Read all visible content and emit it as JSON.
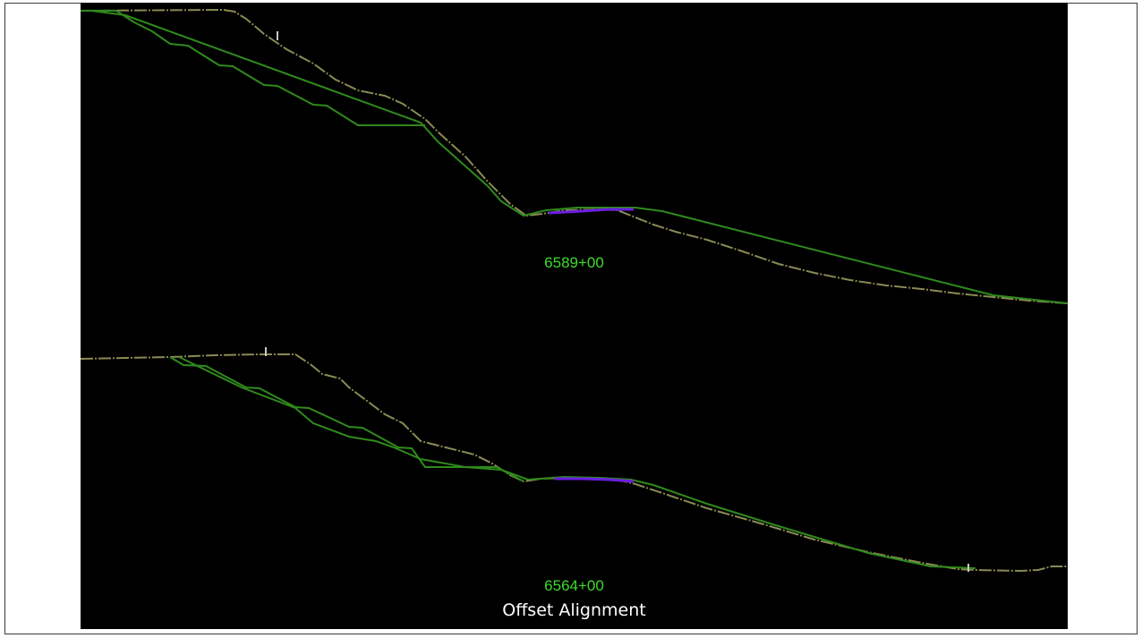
{
  "sections": [
    {
      "station": "6589+00"
    },
    {
      "station": "6564+00"
    }
  ],
  "caption": "Offset Alignment",
  "colors": {
    "background": "#000000",
    "design_line": "#2f8a1c",
    "ground_line": "#8a8a55",
    "pavement": "#6a1ee0",
    "station_label": "#3ddc2a",
    "caption": "#ffffff"
  }
}
